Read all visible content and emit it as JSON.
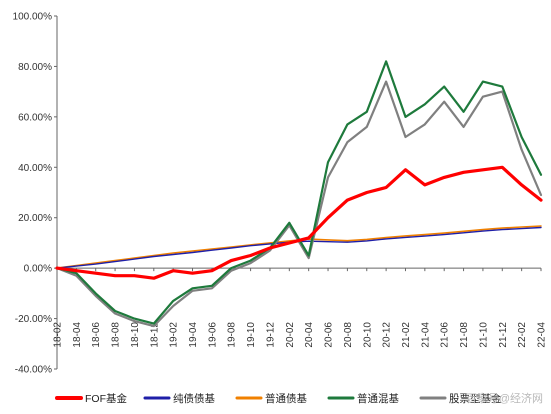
{
  "chart_data": {
    "type": "line",
    "title": "",
    "xlabel": "",
    "ylabel": "",
    "ylim": [
      -40,
      100
    ],
    "yticks": [
      -40,
      -20,
      0,
      20,
      40,
      60,
      80,
      100
    ],
    "ytick_labels": [
      "-40.00%",
      "-20.00%",
      "0.00%",
      "20.00%",
      "40.00%",
      "60.00%",
      "80.00%",
      "100.00%"
    ],
    "x_tick_labels": [
      "18-02",
      "18-04",
      "18-06",
      "18-08",
      "18-10",
      "18-12",
      "19-02",
      "19-04",
      "19-06",
      "19-08",
      "19-10",
      "19-12",
      "20-02",
      "20-04",
      "20-06",
      "20-08",
      "20-10",
      "20-12",
      "21-02",
      "21-04",
      "21-06",
      "21-08",
      "21-10",
      "21-12",
      "22-02",
      "22-04"
    ],
    "grid": false,
    "legend_position": "bottom",
    "series": [
      {
        "name": "FOF基金",
        "color": "#ff0000",
        "values": [
          0,
          -1,
          -2,
          -3,
          -3,
          -4,
          -1,
          -2,
          -1,
          3,
          5,
          8,
          10,
          12,
          20,
          27,
          30,
          32,
          39,
          33,
          36,
          38,
          39,
          40,
          33,
          27
        ]
      },
      {
        "name": "纯债债基",
        "color": "#1f1fa8",
        "values": [
          0,
          0.8,
          1.6,
          2.6,
          3.6,
          4.6,
          5.4,
          6.2,
          7.1,
          8.0,
          8.9,
          9.6,
          10.3,
          10.7,
          10.5,
          10.3,
          10.8,
          11.6,
          12.2,
          12.7,
          13.3,
          14.0,
          14.7,
          15.3,
          15.7,
          16.1
        ]
      },
      {
        "name": "普通债基",
        "color": "#f08000",
        "values": [
          0,
          1.0,
          2.0,
          3.0,
          4.0,
          5.0,
          6.0,
          6.8,
          7.6,
          8.4,
          9.2,
          10.0,
          10.8,
          11.5,
          11.2,
          10.9,
          11.4,
          12.1,
          12.8,
          13.3,
          13.9,
          14.6,
          15.3,
          15.9,
          16.3,
          16.7
        ]
      },
      {
        "name": "普通混基",
        "color": "#1e7a3c",
        "values": [
          0,
          -2,
          -10,
          -17,
          -20,
          -22,
          -13,
          -8,
          -7,
          0,
          3,
          8,
          18,
          5,
          42,
          57,
          62,
          82,
          60,
          65,
          72,
          62,
          74,
          72,
          52,
          37
        ]
      },
      {
        "name": "股票型基金",
        "color": "#808080",
        "values": [
          0,
          -3,
          -11,
          -18,
          -21,
          -23,
          -15,
          -9,
          -8,
          -1,
          2,
          7,
          17,
          4,
          36,
          50,
          56,
          74,
          52,
          57,
          66,
          56,
          68,
          70,
          47,
          29
        ]
      }
    ]
  },
  "watermark": {
    "text": "百家号@经济网"
  }
}
